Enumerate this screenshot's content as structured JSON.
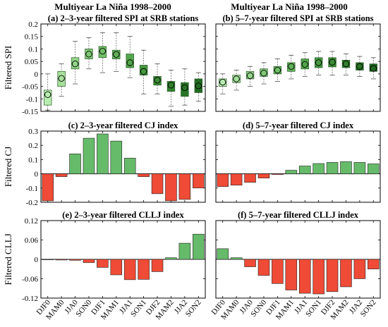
{
  "headers": [
    "Multiyear La Niña 1998–2000",
    "Multiyear La Niña 1998–2000"
  ],
  "seasons": [
    "DJF0",
    "MAM0",
    "JJA0",
    "SON0",
    "DJF1",
    "MAM1",
    "JJA1",
    "SON1",
    "DJF2",
    "MAM2",
    "JJA2",
    "SON2"
  ],
  "colors": {
    "box_greens": [
      "#b8ecb0",
      "#a6e19c",
      "#93d588",
      "#80c976",
      "#6fbe66",
      "#60b258",
      "#52a64b",
      "#46993f",
      "#3b8c35",
      "#31802d",
      "#287426",
      "#216a21"
    ],
    "positive_bar": "#66bb6a",
    "negative_bar": "#ef4b36",
    "zero_line": "#000000"
  },
  "chart_data": [
    {
      "id": "a",
      "type": "box",
      "title": "(a) 2–3-year filtered SPI at SRB stations",
      "ylabel": "Filtered SPI",
      "ylim": [
        -0.15,
        0.2
      ],
      "yticks": [
        "-0.15",
        "-0.1",
        "-0.05",
        "0",
        "0.05",
        "0.1",
        "0.15",
        "0.2"
      ],
      "categories": [
        "DJF0",
        "MAM0",
        "JJA0",
        "SON0",
        "DJF1",
        "MAM1",
        "JJA1",
        "SON1",
        "DJF2",
        "MAM2",
        "JJA2",
        "SON2"
      ],
      "boxes": [
        {
          "min": -0.145,
          "q1": -0.125,
          "median": -0.085,
          "q3": -0.065,
          "max": 0.0,
          "mean": -0.083
        },
        {
          "min": -0.09,
          "q1": -0.05,
          "median": -0.02,
          "q3": 0.01,
          "max": 0.04,
          "mean": -0.018
        },
        {
          "min": -0.04,
          "q1": 0.02,
          "median": 0.04,
          "q3": 0.065,
          "max": 0.13,
          "mean": 0.04
        },
        {
          "min": 0.02,
          "q1": 0.06,
          "median": 0.08,
          "q3": 0.1,
          "max": 0.145,
          "mean": 0.079
        },
        {
          "min": 0.005,
          "q1": 0.065,
          "median": 0.09,
          "q3": 0.11,
          "max": 0.165,
          "mean": 0.091
        },
        {
          "min": 0.01,
          "q1": 0.06,
          "median": 0.08,
          "q3": 0.095,
          "max": 0.165,
          "mean": 0.078
        },
        {
          "min": -0.015,
          "q1": 0.025,
          "median": 0.045,
          "q3": 0.08,
          "max": 0.15,
          "mean": 0.045
        },
        {
          "min": -0.08,
          "q1": -0.005,
          "median": 0.01,
          "q3": 0.035,
          "max": 0.095,
          "mean": 0.01
        },
        {
          "min": -0.08,
          "q1": -0.045,
          "median": -0.025,
          "q3": -0.01,
          "max": 0.04,
          "mean": -0.025
        },
        {
          "min": -0.13,
          "q1": -0.07,
          "median": -0.045,
          "q3": -0.03,
          "max": 0.015,
          "mean": -0.045
        },
        {
          "min": -0.125,
          "q1": -0.09,
          "median": -0.06,
          "q3": -0.035,
          "max": 0.02,
          "mean": -0.055
        },
        {
          "min": -0.11,
          "q1": -0.075,
          "median": -0.05,
          "q3": -0.02,
          "max": 0.005,
          "mean": -0.048
        }
      ]
    },
    {
      "id": "b",
      "type": "box",
      "title": "(b) 5–7-year filtered SPI at SRB stations",
      "ylabel": "",
      "ylim": [
        -0.15,
        0.2
      ],
      "yticks": [],
      "categories": [
        "DJF0",
        "MAM0",
        "JJA0",
        "SON0",
        "DJF1",
        "MAM1",
        "JJA1",
        "SON1",
        "DJF2",
        "MAM2",
        "JJA2",
        "SON2"
      ],
      "boxes": [
        {
          "min": -0.08,
          "q1": -0.05,
          "median": -0.035,
          "q3": -0.02,
          "max": 0.0,
          "mean": -0.033
        },
        {
          "min": -0.065,
          "q1": -0.035,
          "median": -0.022,
          "q3": -0.005,
          "max": 0.015,
          "mean": -0.02
        },
        {
          "min": -0.05,
          "q1": -0.02,
          "median": -0.008,
          "q3": 0.01,
          "max": 0.03,
          "mean": -0.007
        },
        {
          "min": -0.04,
          "q1": -0.01,
          "median": 0.003,
          "q3": 0.02,
          "max": 0.045,
          "mean": 0.003
        },
        {
          "min": -0.03,
          "q1": 0.0,
          "median": 0.015,
          "q3": 0.03,
          "max": 0.06,
          "mean": 0.015
        },
        {
          "min": -0.02,
          "q1": 0.01,
          "median": 0.03,
          "q3": 0.045,
          "max": 0.075,
          "mean": 0.03
        },
        {
          "min": -0.01,
          "q1": 0.02,
          "median": 0.04,
          "q3": 0.06,
          "max": 0.085,
          "mean": 0.038
        },
        {
          "min": -0.005,
          "q1": 0.025,
          "median": 0.045,
          "q3": 0.065,
          "max": 0.09,
          "mean": 0.045
        },
        {
          "min": -0.005,
          "q1": 0.028,
          "median": 0.045,
          "q3": 0.065,
          "max": 0.09,
          "mean": 0.047
        },
        {
          "min": -0.005,
          "q1": 0.025,
          "median": 0.04,
          "q3": 0.055,
          "max": 0.08,
          "mean": 0.04
        },
        {
          "min": -0.01,
          "q1": 0.015,
          "median": 0.03,
          "q3": 0.045,
          "max": 0.07,
          "mean": 0.03
        },
        {
          "min": -0.02,
          "q1": 0.01,
          "median": 0.025,
          "q3": 0.04,
          "max": 0.065,
          "mean": 0.022
        }
      ]
    },
    {
      "id": "c",
      "type": "bar",
      "title": "(c) 2–3-year filtered CJ index",
      "ylabel": "Filtered CJ",
      "ylim": [
        -0.2,
        0.3
      ],
      "yticks": [
        "-0.2",
        "-0.1",
        "0",
        "0.1",
        "0.2",
        "0.3"
      ],
      "categories": [
        "DJF0",
        "MAM0",
        "JJA0",
        "SON0",
        "DJF1",
        "MAM1",
        "JJA1",
        "SON1",
        "DJF2",
        "MAM2",
        "JJA2",
        "SON2"
      ],
      "values": [
        -0.19,
        -0.02,
        0.14,
        0.25,
        0.28,
        0.23,
        0.11,
        -0.02,
        -0.14,
        -0.19,
        -0.18,
        -0.1
      ]
    },
    {
      "id": "d",
      "type": "bar",
      "title": "(d) 5–7-year filtered CJ index",
      "ylabel": "",
      "ylim": [
        -0.2,
        0.3
      ],
      "yticks": [],
      "categories": [
        "DJF0",
        "MAM0",
        "JJA0",
        "SON0",
        "DJF1",
        "MAM1",
        "JJA1",
        "SON1",
        "DJF2",
        "MAM2",
        "JJA2",
        "SON2"
      ],
      "values": [
        -0.09,
        -0.08,
        -0.06,
        -0.03,
        -0.005,
        0.025,
        0.055,
        0.072,
        0.08,
        0.085,
        0.08,
        0.07
      ]
    },
    {
      "id": "e",
      "type": "bar",
      "title": "(e) 2–3-year filtered CLLJ index",
      "ylabel": "Filtered CLLJ",
      "ylim": [
        -0.12,
        0.12
      ],
      "yticks": [
        "-0.12",
        "-0.06",
        "0",
        "0.06",
        "0.12"
      ],
      "categories": [
        "DJF0",
        "MAM0",
        "JJA0",
        "SON0",
        "DJF1",
        "MAM1",
        "JJA1",
        "SON1",
        "DJF2",
        "MAM2",
        "JJA2",
        "SON2"
      ],
      "values": [
        0.0,
        -0.002,
        -0.003,
        -0.01,
        -0.025,
        -0.048,
        -0.063,
        -0.062,
        -0.038,
        0.005,
        0.05,
        0.078
      ]
    },
    {
      "id": "f",
      "type": "bar",
      "title": "(f) 5–7-year filtered CLLJ index",
      "ylabel": "",
      "ylim": [
        -0.12,
        0.12
      ],
      "yticks": [],
      "categories": [
        "DJF0",
        "MAM0",
        "JJA0",
        "SON0",
        "DJF1",
        "MAM1",
        "JJA1",
        "SON1",
        "DJF2",
        "MAM2",
        "JJA2",
        "SON2"
      ],
      "values": [
        0.033,
        0.005,
        -0.023,
        -0.05,
        -0.075,
        -0.095,
        -0.105,
        -0.107,
        -0.1,
        -0.085,
        -0.06,
        -0.03
      ]
    }
  ]
}
